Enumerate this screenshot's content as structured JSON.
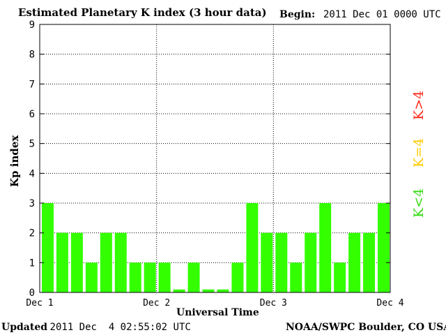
{
  "header": {
    "title": "Estimated Planetary K index (3 hour data)",
    "begin_label": "Begin:",
    "begin_value": "2011 Dec 01 0000 UTC"
  },
  "footer": {
    "updated_label": "Updated",
    "updated_value": "2011 Dec  4 02:55:02 UTC",
    "source": "NOAA/SWPC Boulder, CO USA"
  },
  "legend": [
    {
      "label": "K>4",
      "color": "#ff2a1a"
    },
    {
      "label": "K=4",
      "color": "#ffcc00"
    },
    {
      "label": "K<4",
      "color": "#33dd11"
    }
  ],
  "chart_data": {
    "type": "bar",
    "xlabel": "Universal Time",
    "ylabel": "Kp index",
    "ylim": [
      0,
      9
    ],
    "yticks": [
      0,
      1,
      2,
      3,
      4,
      5,
      6,
      7,
      8,
      9
    ],
    "xticks": [
      "Dec 1",
      "Dec 2",
      "Dec 3",
      "Dec 4"
    ],
    "grid": "dotted, at each day boundary and each integer Kp",
    "bar_color": "#33ff00",
    "values": [
      3,
      2,
      2,
      1,
      2,
      2,
      1,
      1,
      1,
      0.1,
      1,
      0.1,
      0.1,
      1,
      3,
      2,
      2,
      1,
      2,
      3,
      1,
      2,
      2,
      3
    ]
  }
}
